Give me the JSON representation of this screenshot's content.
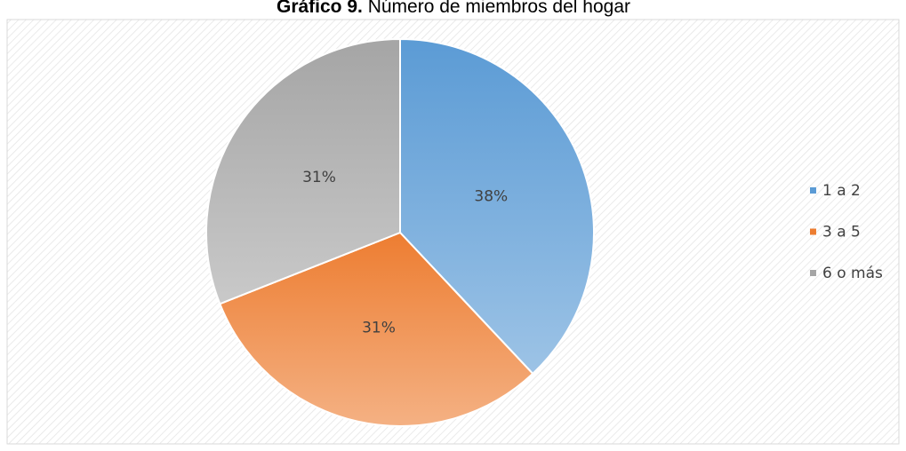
{
  "chart_data": {
    "type": "pie",
    "title_label": "Gráfico 9.",
    "title": "Número de miembros del hogar",
    "categories": [
      "1 a 2",
      "3 a 5",
      "6 o más"
    ],
    "values": [
      38,
      31,
      31
    ],
    "value_labels": [
      "38%",
      "31%",
      "31%"
    ],
    "colors": [
      "#5b9bd5",
      "#ed7d31",
      "#a5a5a5"
    ],
    "legend": "right"
  }
}
